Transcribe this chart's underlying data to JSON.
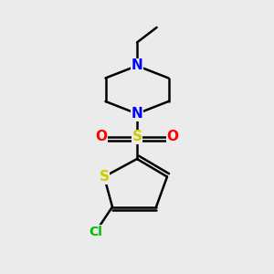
{
  "background_color": "#ebebeb",
  "bond_color": "#000000",
  "bond_width": 1.8,
  "atom_colors": {
    "N": "#0000ff",
    "S": "#cccc00",
    "O": "#ff0000",
    "Cl": "#00bb00"
  },
  "figsize": [
    3.0,
    3.0
  ],
  "dpi": 100
}
